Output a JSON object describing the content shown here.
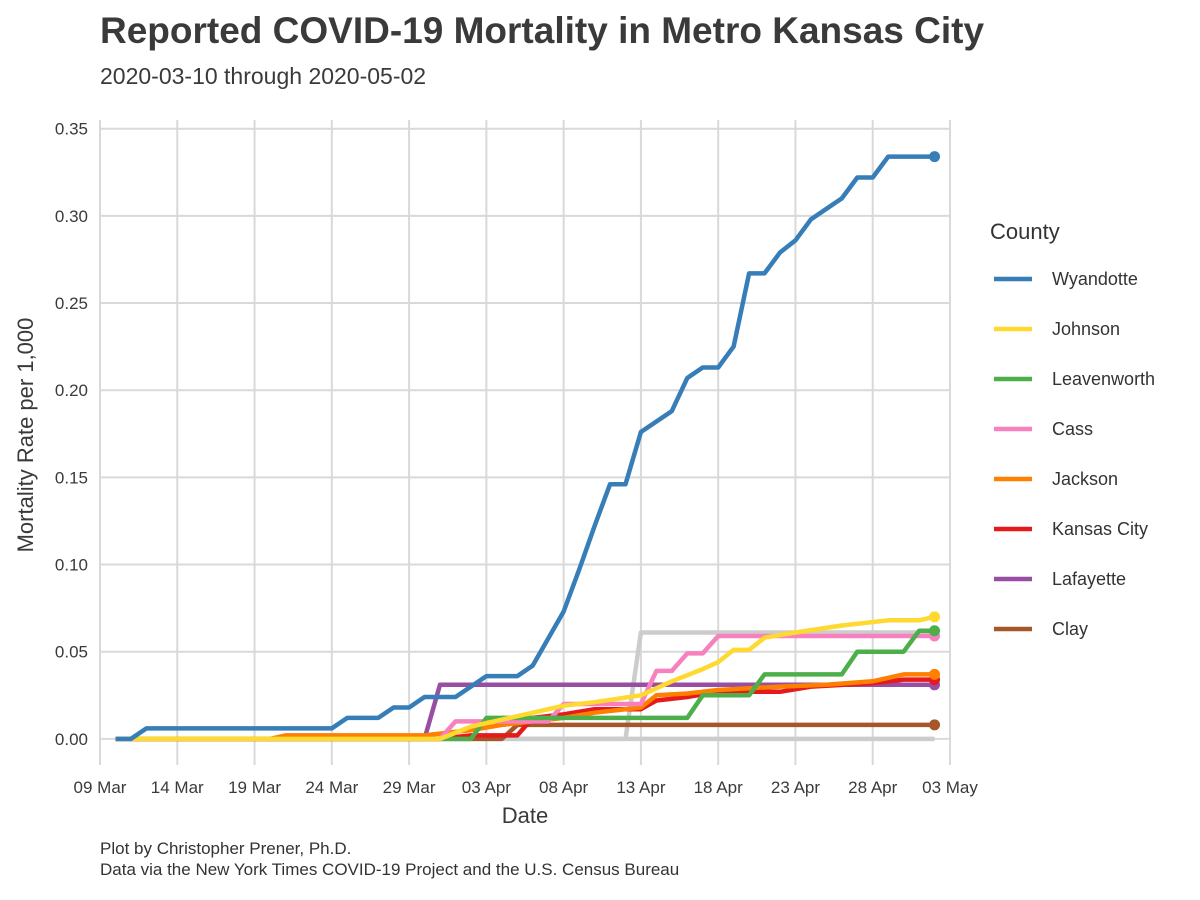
{
  "chart_data": {
    "type": "line",
    "title": "Reported COVID-19 Mortality in Metro Kansas City",
    "subtitle": "2020-03-10 through 2020-05-02",
    "xlabel": "Date",
    "ylabel": "Mortality Rate per 1,000",
    "caption": [
      "Plot by Christopher Prener, Ph.D.",
      "Data via the New York Times COVID-19 Project and the U.S. Census Bureau"
    ],
    "x_type": "date",
    "xlim": [
      "2020-03-09",
      "2020-05-03"
    ],
    "ylim": [
      -0.015,
      0.355
    ],
    "x_ticks": [
      {
        "date": "2020-03-09",
        "label": "09 Mar"
      },
      {
        "date": "2020-03-14",
        "label": "14 Mar"
      },
      {
        "date": "2020-03-19",
        "label": "19 Mar"
      },
      {
        "date": "2020-03-24",
        "label": "24 Mar"
      },
      {
        "date": "2020-03-29",
        "label": "29 Mar"
      },
      {
        "date": "2020-04-03",
        "label": "03 Apr"
      },
      {
        "date": "2020-04-08",
        "label": "08 Apr"
      },
      {
        "date": "2020-04-13",
        "label": "13 Apr"
      },
      {
        "date": "2020-04-18",
        "label": "18 Apr"
      },
      {
        "date": "2020-04-23",
        "label": "23 Apr"
      },
      {
        "date": "2020-04-28",
        "label": "28 Apr"
      },
      {
        "date": "2020-05-03",
        "label": "03 May"
      }
    ],
    "y_ticks": [
      {
        "value": 0.0,
        "label": "0.00"
      },
      {
        "value": 0.05,
        "label": "0.05"
      },
      {
        "value": 0.1,
        "label": "0.10"
      },
      {
        "value": 0.15,
        "label": "0.15"
      },
      {
        "value": 0.2,
        "label": "0.20"
      },
      {
        "value": 0.25,
        "label": "0.25"
      },
      {
        "value": 0.3,
        "label": "0.30"
      },
      {
        "value": 0.35,
        "label": "0.35"
      }
    ],
    "grid": true,
    "legend": {
      "title": "County",
      "position": "right"
    },
    "background_series_color": "#cccccc",
    "series": [
      {
        "name": "Unlabeled grey series",
        "in_legend": false,
        "color": "#cccccc",
        "endpoint_dot": false,
        "points": [
          [
            "2020-03-10",
            0
          ],
          [
            "2020-04-12",
            0
          ],
          [
            "2020-04-13",
            0.061
          ],
          [
            "2020-05-02",
            0.061
          ]
        ]
      },
      {
        "name": "Unlabeled grey series",
        "in_legend": false,
        "color": "#cccccc",
        "endpoint_dot": false,
        "points": [
          [
            "2020-03-10",
            0
          ],
          [
            "2020-05-02",
            0
          ]
        ]
      },
      {
        "name": "Clay",
        "in_legend": true,
        "color": "#a65628",
        "endpoint_dot": true,
        "points": [
          [
            "2020-03-10",
            0
          ],
          [
            "2020-04-04",
            0
          ],
          [
            "2020-04-05",
            0.008
          ],
          [
            "2020-05-02",
            0.008
          ]
        ]
      },
      {
        "name": "Lafayette",
        "in_legend": true,
        "color": "#984ea3",
        "endpoint_dot": true,
        "points": [
          [
            "2020-03-10",
            0
          ],
          [
            "2020-03-30",
            0
          ],
          [
            "2020-03-31",
            0.031
          ],
          [
            "2020-05-02",
            0.031
          ]
        ]
      },
      {
        "name": "Kansas City",
        "in_legend": true,
        "color": "#e41a1c",
        "endpoint_dot": true,
        "points": [
          [
            "2020-03-10",
            0
          ],
          [
            "2020-03-31",
            0
          ],
          [
            "2020-04-02",
            0.002
          ],
          [
            "2020-04-05",
            0.002
          ],
          [
            "2020-04-06",
            0.012
          ],
          [
            "2020-04-08",
            0.014
          ],
          [
            "2020-04-10",
            0.017
          ],
          [
            "2020-04-13",
            0.017
          ],
          [
            "2020-04-14",
            0.022
          ],
          [
            "2020-04-16",
            0.024
          ],
          [
            "2020-04-18",
            0.027
          ],
          [
            "2020-04-22",
            0.027
          ],
          [
            "2020-04-24",
            0.03
          ],
          [
            "2020-04-28",
            0.032
          ],
          [
            "2020-04-30",
            0.034
          ],
          [
            "2020-05-02",
            0.034
          ]
        ]
      },
      {
        "name": "Jackson",
        "in_legend": true,
        "color": "#ff7f00",
        "endpoint_dot": true,
        "points": [
          [
            "2020-03-10",
            0
          ],
          [
            "2020-03-20",
            0
          ],
          [
            "2020-03-21",
            0.002
          ],
          [
            "2020-03-30",
            0.002
          ],
          [
            "2020-04-02",
            0.005
          ],
          [
            "2020-04-04",
            0.008
          ],
          [
            "2020-04-08",
            0.012
          ],
          [
            "2020-04-10",
            0.015
          ],
          [
            "2020-04-13",
            0.018
          ],
          [
            "2020-04-14",
            0.025
          ],
          [
            "2020-04-16",
            0.026
          ],
          [
            "2020-04-18",
            0.028
          ],
          [
            "2020-04-22",
            0.03
          ],
          [
            "2020-04-25",
            0.031
          ],
          [
            "2020-04-28",
            0.033
          ],
          [
            "2020-04-30",
            0.037
          ],
          [
            "2020-05-02",
            0.037
          ]
        ]
      },
      {
        "name": "Cass",
        "in_legend": true,
        "color": "#f781bf",
        "endpoint_dot": true,
        "points": [
          [
            "2020-03-10",
            0
          ],
          [
            "2020-03-31",
            0
          ],
          [
            "2020-04-01",
            0.01
          ],
          [
            "2020-04-07",
            0.01
          ],
          [
            "2020-04-08",
            0.02
          ],
          [
            "2020-04-13",
            0.02
          ],
          [
            "2020-04-14",
            0.039
          ],
          [
            "2020-04-15",
            0.039
          ],
          [
            "2020-04-16",
            0.049
          ],
          [
            "2020-04-17",
            0.049
          ],
          [
            "2020-04-18",
            0.059
          ],
          [
            "2020-05-02",
            0.059
          ]
        ]
      },
      {
        "name": "Leavenworth",
        "in_legend": true,
        "color": "#4daf4a",
        "endpoint_dot": true,
        "points": [
          [
            "2020-03-10",
            0
          ],
          [
            "2020-04-02",
            0
          ],
          [
            "2020-04-03",
            0.012
          ],
          [
            "2020-04-16",
            0.012
          ],
          [
            "2020-04-17",
            0.025
          ],
          [
            "2020-04-20",
            0.025
          ],
          [
            "2020-04-21",
            0.037
          ],
          [
            "2020-04-26",
            0.037
          ],
          [
            "2020-04-27",
            0.05
          ],
          [
            "2020-04-30",
            0.05
          ],
          [
            "2020-05-01",
            0.062
          ],
          [
            "2020-05-02",
            0.062
          ]
        ]
      },
      {
        "name": "Johnson",
        "in_legend": true,
        "color": "#ffd92f",
        "endpoint_dot": true,
        "points": [
          [
            "2020-03-10",
            0
          ],
          [
            "2020-03-31",
            0
          ],
          [
            "2020-04-02",
            0.007
          ],
          [
            "2020-04-05",
            0.013
          ],
          [
            "2020-04-08",
            0.019
          ],
          [
            "2020-04-10",
            0.021
          ],
          [
            "2020-04-13",
            0.025
          ],
          [
            "2020-04-15",
            0.033
          ],
          [
            "2020-04-17",
            0.04
          ],
          [
            "2020-04-18",
            0.044
          ],
          [
            "2020-04-19",
            0.051
          ],
          [
            "2020-04-20",
            0.051
          ],
          [
            "2020-04-21",
            0.058
          ],
          [
            "2020-04-23",
            0.061
          ],
          [
            "2020-04-26",
            0.065
          ],
          [
            "2020-04-29",
            0.068
          ],
          [
            "2020-05-01",
            0.068
          ],
          [
            "2020-05-02",
            0.07
          ]
        ]
      },
      {
        "name": "Wyandotte",
        "in_legend": true,
        "color": "#377eb8",
        "endpoint_dot": true,
        "points": [
          [
            "2020-03-10",
            0
          ],
          [
            "2020-03-11",
            0
          ],
          [
            "2020-03-12",
            0.006
          ],
          [
            "2020-03-24",
            0.006
          ],
          [
            "2020-03-25",
            0.012
          ],
          [
            "2020-03-27",
            0.012
          ],
          [
            "2020-03-28",
            0.018
          ],
          [
            "2020-03-29",
            0.018
          ],
          [
            "2020-03-30",
            0.024
          ],
          [
            "2020-04-01",
            0.024
          ],
          [
            "2020-04-03",
            0.036
          ],
          [
            "2020-04-05",
            0.036
          ],
          [
            "2020-04-06",
            0.042
          ],
          [
            "2020-04-08",
            0.073
          ],
          [
            "2020-04-09",
            0.097
          ],
          [
            "2020-04-10",
            0.122
          ],
          [
            "2020-04-11",
            0.146
          ],
          [
            "2020-04-12",
            0.146
          ],
          [
            "2020-04-13",
            0.176
          ],
          [
            "2020-04-15",
            0.188
          ],
          [
            "2020-04-16",
            0.207
          ],
          [
            "2020-04-17",
            0.213
          ],
          [
            "2020-04-18",
            0.213
          ],
          [
            "2020-04-19",
            0.225
          ],
          [
            "2020-04-20",
            0.267
          ],
          [
            "2020-04-21",
            0.267
          ],
          [
            "2020-04-22",
            0.279
          ],
          [
            "2020-04-23",
            0.286
          ],
          [
            "2020-04-24",
            0.298
          ],
          [
            "2020-04-26",
            0.31
          ],
          [
            "2020-04-27",
            0.322
          ],
          [
            "2020-04-28",
            0.322
          ],
          [
            "2020-04-29",
            0.334
          ],
          [
            "2020-05-02",
            0.334
          ]
        ]
      }
    ]
  }
}
